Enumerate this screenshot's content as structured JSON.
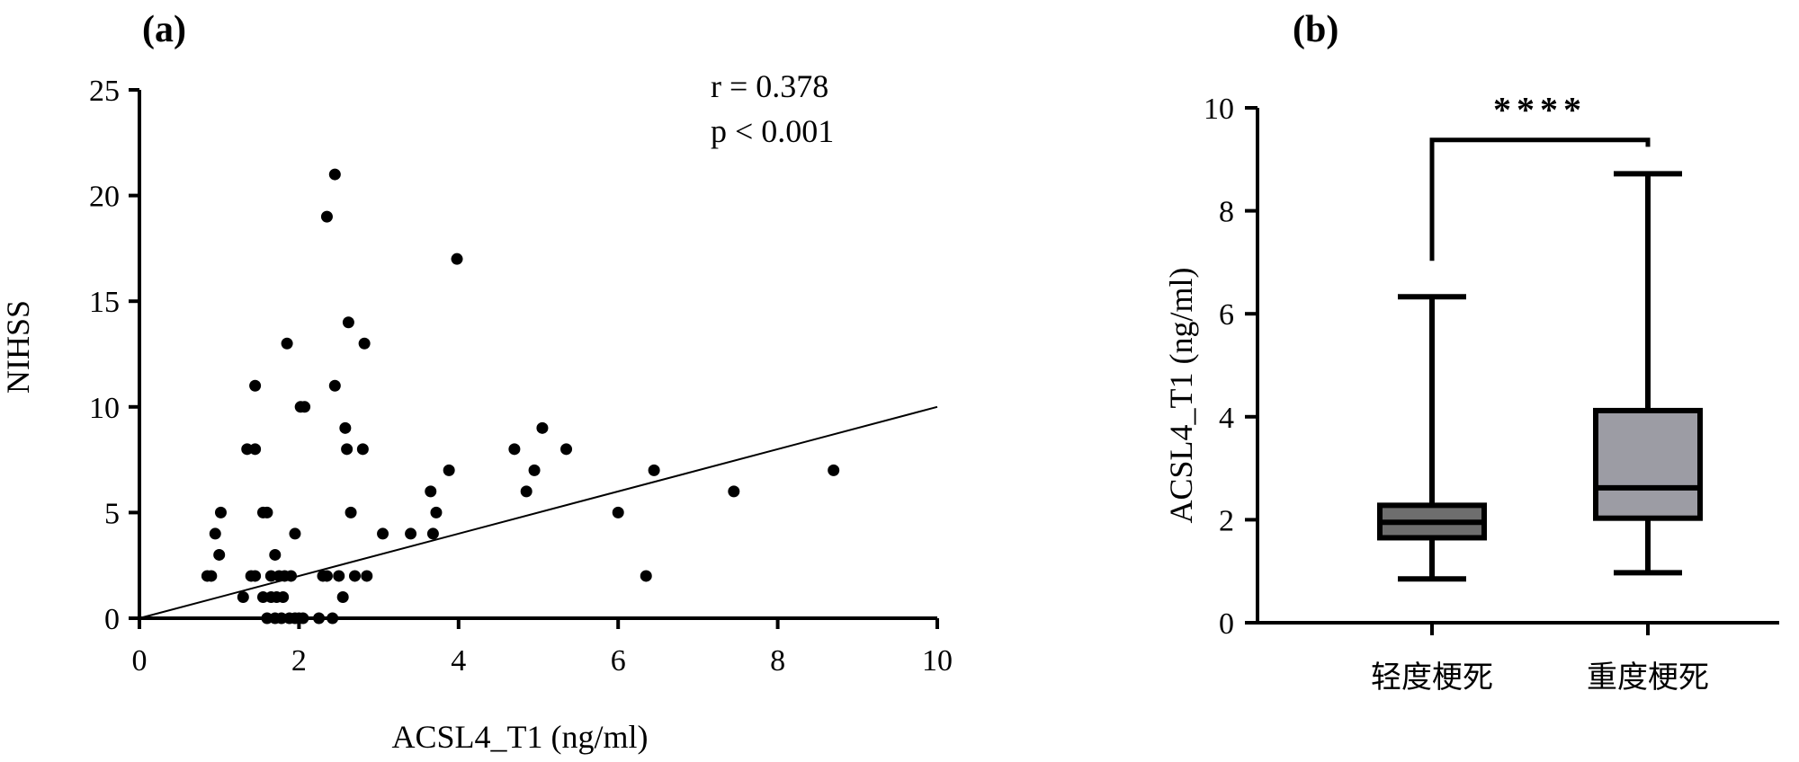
{
  "chart_data": [
    {
      "panel": "(a)",
      "type": "scatter",
      "xlabel": "ACSL4_T1 (ng/ml)",
      "ylabel": "NIHSS",
      "xlim": [
        0,
        10
      ],
      "ylim": [
        0,
        25
      ],
      "xticks": [
        "0",
        "2",
        "4",
        "6",
        "8",
        "10"
      ],
      "yticks": [
        "0",
        "5",
        "10",
        "15",
        "20",
        "25"
      ],
      "annotation": {
        "r": "r = 0.378",
        "p": "p < 0.001"
      },
      "fit_line": {
        "x1": 0,
        "y1": 0,
        "x2": 10,
        "y2": 10
      },
      "points": [
        [
          0.85,
          2
        ],
        [
          0.9,
          2
        ],
        [
          0.95,
          4
        ],
        [
          1.0,
          3
        ],
        [
          1.02,
          5
        ],
        [
          1.3,
          1
        ],
        [
          1.35,
          8
        ],
        [
          1.4,
          2
        ],
        [
          1.45,
          8
        ],
        [
          1.45,
          11
        ],
        [
          1.45,
          2
        ],
        [
          1.55,
          1
        ],
        [
          1.55,
          5
        ],
        [
          1.6,
          0
        ],
        [
          1.6,
          5
        ],
        [
          1.65,
          1
        ],
        [
          1.65,
          2
        ],
        [
          1.7,
          0
        ],
        [
          1.7,
          3
        ],
        [
          1.72,
          1
        ],
        [
          1.75,
          2
        ],
        [
          1.78,
          0
        ],
        [
          1.8,
          1
        ],
        [
          1.82,
          2
        ],
        [
          1.85,
          13
        ],
        [
          1.88,
          0
        ],
        [
          1.9,
          2
        ],
        [
          1.95,
          0
        ],
        [
          1.95,
          4
        ],
        [
          2.0,
          0
        ],
        [
          2.02,
          10
        ],
        [
          2.05,
          0
        ],
        [
          2.07,
          10
        ],
        [
          2.25,
          0
        ],
        [
          2.3,
          2
        ],
        [
          2.35,
          2
        ],
        [
          2.35,
          19
        ],
        [
          2.42,
          0
        ],
        [
          2.45,
          11
        ],
        [
          2.45,
          21
        ],
        [
          2.5,
          2
        ],
        [
          2.55,
          1
        ],
        [
          2.58,
          9
        ],
        [
          2.6,
          8
        ],
        [
          2.62,
          14
        ],
        [
          2.65,
          5
        ],
        [
          2.7,
          2
        ],
        [
          2.8,
          8
        ],
        [
          2.82,
          13
        ],
        [
          2.85,
          2
        ],
        [
          3.05,
          4
        ],
        [
          3.4,
          4
        ],
        [
          3.65,
          6
        ],
        [
          3.68,
          4
        ],
        [
          3.72,
          5
        ],
        [
          3.88,
          7
        ],
        [
          3.98,
          17
        ],
        [
          4.7,
          8
        ],
        [
          4.85,
          6
        ],
        [
          4.95,
          7
        ],
        [
          5.05,
          9
        ],
        [
          5.35,
          8
        ],
        [
          6.0,
          5
        ],
        [
          6.35,
          2
        ],
        [
          6.45,
          7
        ],
        [
          7.45,
          6
        ],
        [
          8.7,
          7
        ]
      ]
    },
    {
      "panel": "(b)",
      "type": "box",
      "ylabel": "ACSL4_T1 (ng/ml)",
      "ylim": [
        0,
        10
      ],
      "yticks": [
        "0",
        "2",
        "4",
        "6",
        "8",
        "10"
      ],
      "categories": [
        "轻度梗死",
        "重度梗死"
      ],
      "boxes": [
        {
          "name": "轻度梗死",
          "min": 0.85,
          "q1": 1.65,
          "median": 1.95,
          "q3": 2.28,
          "max": 6.33,
          "fill": "#6e6e6e"
        },
        {
          "name": "重度梗死",
          "min": 0.97,
          "q1": 2.03,
          "median": 2.62,
          "q3": 4.12,
          "max": 8.72,
          "fill": "#9c9ca4"
        }
      ],
      "significance": {
        "label": "****",
        "bracket_y": 9.9
      }
    }
  ]
}
